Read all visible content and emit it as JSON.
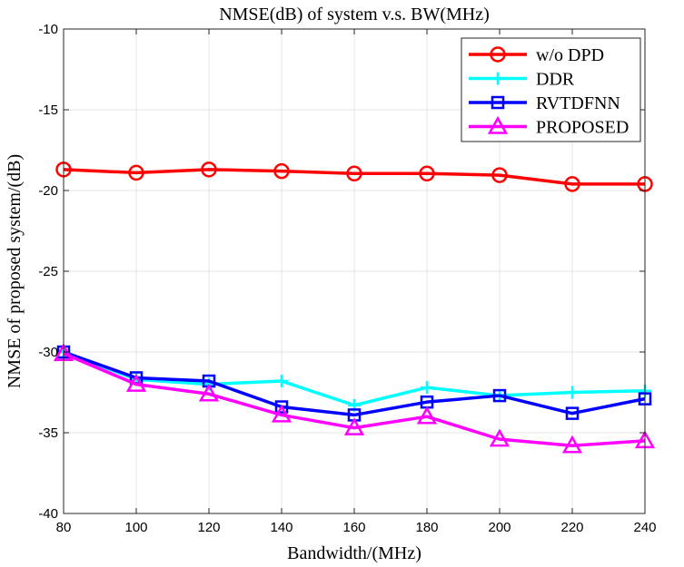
{
  "chart_data": {
    "type": "line",
    "title": "NMSE(dB) of system v.s. BW(MHz)",
    "xlabel": "Bandwidth/(MHz)",
    "ylabel": "NMSE of proposed system/(dB)",
    "xlim": [
      80,
      240
    ],
    "ylim": [
      -40,
      -10
    ],
    "x": [
      80,
      100,
      120,
      140,
      160,
      180,
      200,
      220,
      240
    ],
    "xticks": [
      "80",
      "100",
      "120",
      "140",
      "160",
      "180",
      "200",
      "220",
      "240"
    ],
    "yticks": [
      "-10",
      "-15",
      "-20",
      "-25",
      "-30",
      "-35",
      "-40"
    ],
    "grid": true,
    "legend_position": "top-right",
    "series": [
      {
        "name": "w/o DPD",
        "color": "#ff0000",
        "marker": "circle",
        "values": [
          -18.7,
          -18.9,
          -18.7,
          -18.8,
          -18.95,
          -18.95,
          -19.05,
          -19.6,
          -19.6
        ]
      },
      {
        "name": "DDR",
        "color": "#00ffff",
        "marker": "plus",
        "values": [
          -30.0,
          -31.7,
          -32.0,
          -31.8,
          -33.3,
          -32.2,
          -32.7,
          -32.5,
          -32.4
        ]
      },
      {
        "name": "RVTDFNN",
        "color": "#0000ff",
        "marker": "square",
        "values": [
          -30.0,
          -31.6,
          -31.8,
          -33.4,
          -33.9,
          -33.1,
          -32.7,
          -33.8,
          -32.9
        ]
      },
      {
        "name": "PROPOSED",
        "color": "#ff00ff",
        "marker": "triangle",
        "values": [
          -30.1,
          -32.0,
          -32.6,
          -33.9,
          -34.7,
          -34.0,
          -35.4,
          -35.8,
          -35.5
        ]
      }
    ]
  }
}
